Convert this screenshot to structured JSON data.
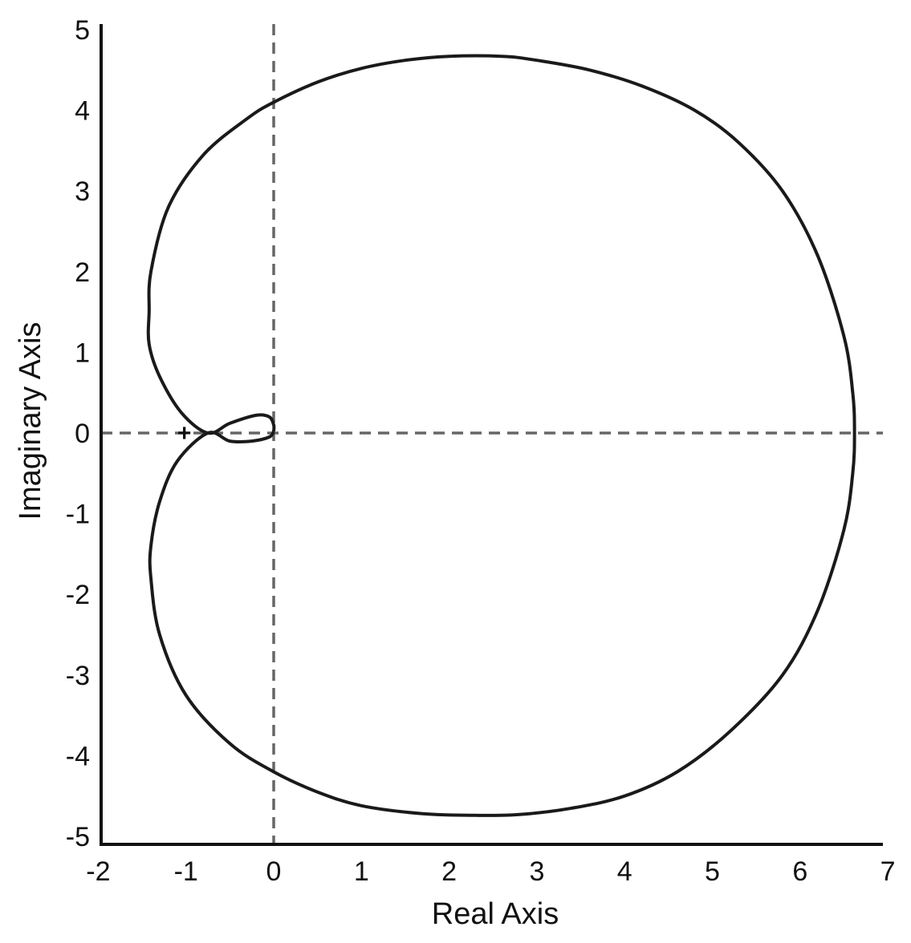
{
  "chart_data": {
    "type": "line",
    "title": "",
    "xlabel": "Real Axis",
    "ylabel": "Imaginary Axis",
    "xlim": [
      -2,
      7
    ],
    "ylim": [
      -5,
      5
    ],
    "xticks": [
      "-2",
      "-1",
      "0",
      "1",
      "2",
      "3",
      "4",
      "5",
      "6",
      "7"
    ],
    "yticks": [
      "5",
      "4",
      "3",
      "2",
      "1",
      "0",
      "-1",
      "-2",
      "-3",
      "-4",
      "-5"
    ],
    "grid": false,
    "reference_lines": [
      {
        "orientation": "horizontal",
        "value": 0,
        "style": "dashed"
      },
      {
        "orientation": "vertical",
        "value": 0,
        "style": "dashed"
      }
    ],
    "critical_point": {
      "label": "+",
      "x": -1,
      "y": 0
    },
    "series": [
      {
        "points": [
          [
            0.0,
            0.02
          ],
          [
            0.0,
            0.1
          ],
          [
            -0.05,
            0.2
          ],
          [
            -0.2,
            0.22
          ],
          [
            -0.5,
            0.12
          ],
          [
            -0.75,
            0.0
          ],
          [
            -1.05,
            0.25
          ],
          [
            -1.3,
            0.7
          ],
          [
            -1.42,
            1.1
          ],
          [
            -1.42,
            1.5
          ],
          [
            -1.4,
            2.0
          ],
          [
            -1.2,
            2.8
          ],
          [
            -0.8,
            3.45
          ],
          [
            -0.3,
            3.9
          ],
          [
            0.0,
            4.1
          ],
          [
            0.5,
            4.35
          ],
          [
            1.0,
            4.52
          ],
          [
            1.5,
            4.62
          ],
          [
            2.0,
            4.67
          ],
          [
            2.6,
            4.67
          ],
          [
            3.0,
            4.62
          ],
          [
            3.6,
            4.5
          ],
          [
            4.2,
            4.3
          ],
          [
            4.8,
            4.0
          ],
          [
            5.3,
            3.6
          ],
          [
            5.8,
            3.0
          ],
          [
            6.2,
            2.2
          ],
          [
            6.5,
            1.2
          ],
          [
            6.6,
            0.5
          ],
          [
            6.62,
            0.0
          ],
          [
            6.6,
            -0.5
          ],
          [
            6.5,
            -1.2
          ],
          [
            6.2,
            -2.2
          ],
          [
            5.8,
            -3.0
          ],
          [
            5.2,
            -3.7
          ],
          [
            4.6,
            -4.2
          ],
          [
            4.0,
            -4.5
          ],
          [
            3.4,
            -4.65
          ],
          [
            2.8,
            -4.73
          ],
          [
            2.3,
            -4.74
          ],
          [
            1.7,
            -4.72
          ],
          [
            1.0,
            -4.62
          ],
          [
            0.5,
            -4.45
          ],
          [
            0.0,
            -4.2
          ],
          [
            -0.5,
            -3.85
          ],
          [
            -1.0,
            -3.25
          ],
          [
            -1.3,
            -2.5
          ],
          [
            -1.4,
            -1.8
          ],
          [
            -1.4,
            -1.4
          ],
          [
            -1.3,
            -0.85
          ],
          [
            -1.1,
            -0.35
          ],
          [
            -0.75,
            0.0
          ],
          [
            -0.5,
            -0.1
          ],
          [
            -0.25,
            -0.1
          ],
          [
            -0.05,
            -0.05
          ],
          [
            0.0,
            0.02
          ]
        ]
      }
    ]
  }
}
